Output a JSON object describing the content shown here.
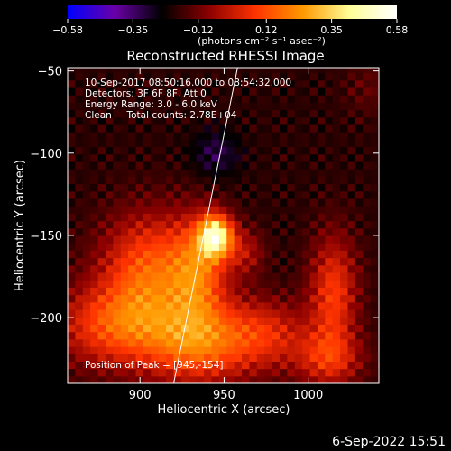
{
  "colorbar": {
    "tick_labels": [
      "-0.58",
      "-0.35",
      "-0.12",
      "0.12",
      "0.35",
      "0.58"
    ],
    "range": [
      -0.58,
      0.58
    ],
    "units": "(photons cm⁻² s⁻¹ asec⁻²)",
    "colors": [
      "#0000ff",
      "#6a00a8",
      "#000000",
      "#8b0000",
      "#ff3300",
      "#ff9900",
      "#ffff99",
      "#ffffff"
    ]
  },
  "chart_data": {
    "type": "heatmap",
    "title": "Reconstructed RHESSI Image",
    "xlabel": "Heliocentric X (arcsec)",
    "ylabel": "Heliocentric Y (arcsec)",
    "xlim": [
      857,
      1042
    ],
    "ylim": [
      -240,
      -48
    ],
    "x_ticks": [
      900,
      950,
      1000
    ],
    "y_ticks": [
      -200,
      -150,
      -100,
      -50
    ],
    "x_tick_labels": [
      "900",
      "950",
      "1000"
    ],
    "y_tick_labels": [
      "−200",
      "−150",
      "−100",
      "−50"
    ],
    "annotations": [
      "10-Sep-2017 08:50:16.000 to 08:54:32.000",
      "Detectors: 3F 6F 8F, Att 0",
      "Energy Range: 3.0 - 6.0 keV",
      "Clean     Total counts: 2.78E+04"
    ],
    "peak_label": "Position of Peak = [945,-154]",
    "peak": [
      945,
      -154
    ],
    "sources": [
      {
        "x": 945,
        "y": -150,
        "amp": 0.58,
        "sx": 7,
        "sy": 9
      },
      {
        "x": 935,
        "y": -170,
        "amp": 0.3,
        "sx": 12,
        "sy": 22
      },
      {
        "x": 905,
        "y": -170,
        "amp": 0.32,
        "sx": 20,
        "sy": 24
      },
      {
        "x": 885,
        "y": -205,
        "amp": 0.3,
        "sx": 25,
        "sy": 18
      },
      {
        "x": 935,
        "y": -215,
        "amp": 0.35,
        "sx": 22,
        "sy": 18
      },
      {
        "x": 975,
        "y": -210,
        "amp": 0.22,
        "sx": 18,
        "sy": 15
      },
      {
        "x": 1015,
        "y": -185,
        "amp": 0.28,
        "sx": 10,
        "sy": 25
      },
      {
        "x": 1012,
        "y": -225,
        "amp": 0.22,
        "sx": 14,
        "sy": 12
      },
      {
        "x": 963,
        "y": -160,
        "amp": 0.15,
        "sx": 8,
        "sy": 10
      },
      {
        "x": 1035,
        "y": -60,
        "amp": 0.06,
        "sx": 10,
        "sy": 12
      }
    ],
    "limb_line": [
      [
        920,
        -240
      ],
      [
        958,
        -48
      ]
    ]
  },
  "footer": {
    "date": "6-Sep-2022 15:51"
  }
}
